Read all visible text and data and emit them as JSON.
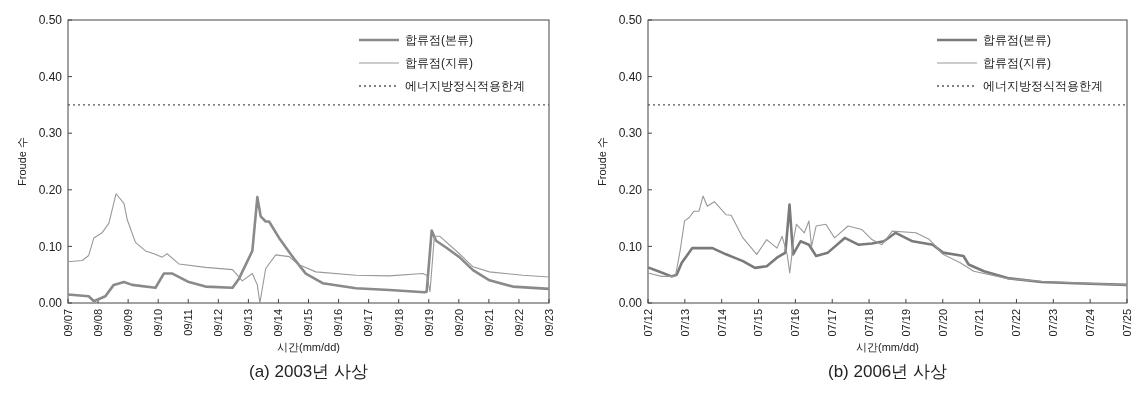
{
  "chart_data": [
    {
      "type": "line",
      "xlabel": "시간(mm/dd)",
      "ylabel": "Froude 수",
      "annotations": [
        "(a) 2003년 사상"
      ],
      "xlim": [
        "--09-07",
        "--09-23"
      ],
      "ylim": [
        0,
        0.5
      ],
      "yticks": [
        {
          "value": 0,
          "label": "0.00"
        },
        {
          "value": 0.1,
          "label": "0.10"
        },
        {
          "value": 0.2,
          "label": "0.20"
        },
        {
          "value": 0.3,
          "label": "0.30"
        },
        {
          "value": 0.4,
          "label": "0.40"
        },
        {
          "value": 0.5,
          "label": "0.50"
        }
      ],
      "xticks": [
        {
          "value": "--09-07",
          "label": "09/07"
        },
        {
          "value": "--09-08",
          "label": "09/08"
        },
        {
          "value": "--09-09",
          "label": "09/09"
        },
        {
          "value": "--09-10",
          "label": "09/10"
        },
        {
          "value": "--09-11",
          "label": "09/11"
        },
        {
          "value": "--09-12",
          "label": "09/12"
        },
        {
          "value": "--09-13",
          "label": "09/13"
        },
        {
          "value": "--09-14",
          "label": "09/14"
        },
        {
          "value": "--09-15",
          "label": "09/15"
        },
        {
          "value": "--09-16",
          "label": "09/16"
        },
        {
          "value": "--09-17",
          "label": "09/17"
        },
        {
          "value": "--09-18",
          "label": "09/18"
        },
        {
          "value": "--09-19",
          "label": "09/19"
        },
        {
          "value": "--09-20",
          "label": "09/20"
        },
        {
          "value": "--09-21",
          "label": "09/21"
        },
        {
          "value": "--09-22",
          "label": "09/22"
        },
        {
          "value": "--09-23",
          "label": "09/23"
        }
      ],
      "legend": "top right",
      "ref_lines": [
        {
          "axis": "y",
          "value": 0.35,
          "label": "에너지방정식적용한계",
          "color": "#555555",
          "line_style": "dotted"
        }
      ],
      "series": [
        {
          "name": "합류점(본류)",
          "color": "#8a8a8a",
          "x": [
            "--09-07T00:00",
            "--09-07T16:30",
            "--09-07T20:40",
            "--09-08T05:50",
            "--09-08T12:30",
            "--09-08T20:40",
            "--09-09T03:10",
            "--09-09T21:50",
            "--09-10T04:30",
            "--09-10T11:20",
            "--09-11T00:30",
            "--09-11T13:50",
            "--09-12T11:20",
            "--09-12T16:30",
            "--09-13T03:10",
            "--09-13T07:10",
            "--09-13T09:50",
            "--09-13T13:50",
            "--09-13T16:30",
            "--09-14T00:30",
            "--09-14T12:30",
            "--09-14T21:50",
            "--09-15T11:20",
            "--09-16T13:50",
            "--09-17T16:30",
            "--09-18T20:40",
            "--09-18T22:20",
            "--09-19T02:20",
            "--09-19T05:50",
            "--09-19T13:50",
            "--09-20T00:30",
            "--09-20T11:20",
            "--09-21T00:30",
            "--09-21T19:10",
            "--09-23T00:00"
          ],
          "values": [
            0.015,
            0.012,
            0.003,
            0.012,
            0.032,
            0.037,
            0.032,
            0.027,
            0.052,
            0.052,
            0.037,
            0.029,
            0.027,
            0.043,
            0.092,
            0.187,
            0.153,
            0.144,
            0.144,
            0.115,
            0.078,
            0.052,
            0.035,
            0.026,
            0.023,
            0.019,
            0.02,
            0.128,
            0.11,
            0.098,
            0.081,
            0.058,
            0.04,
            0.029,
            0.025
          ]
        },
        {
          "name": "합류점(지류)",
          "color": "#999999",
          "x": [
            "--09-07T00:00",
            "--09-07T11:20",
            "--09-07T16:30",
            "--09-07T20:40",
            "--09-08T03:10",
            "--09-08T08:40",
            "--09-08T14:20",
            "--09-08T20:40",
            "--09-08T23:20",
            "--09-09T05:50",
            "--09-09T13:50",
            "--09-09T20:40",
            "--09-10T03:10",
            "--09-10T07:10",
            "--09-10T16:30",
            "--09-11T13:50",
            "--09-12T11:20",
            "--09-12T19:10",
            "--09-13T03:10",
            "--09-13T07:10",
            "--09-13T09:10",
            "--09-13T13:50",
            "--09-13T21:50",
            "--09-14T08:40",
            "--09-14T15:10",
            "--09-15T05:50",
            "--09-16T13:50",
            "--09-17T16:30",
            "--09-18T19:10",
            "--09-18T22:30",
            "--09-19T01:00",
            "--09-19T04:30",
            "--09-19T08:40",
            "--09-20T00:30",
            "--09-20T11:20",
            "--09-21T00:30",
            "--09-22T03:10",
            "--09-23T00:00"
          ],
          "values": [
            0.073,
            0.075,
            0.084,
            0.115,
            0.124,
            0.141,
            0.193,
            0.176,
            0.147,
            0.107,
            0.092,
            0.087,
            0.081,
            0.087,
            0.069,
            0.063,
            0.059,
            0.039,
            0.052,
            0.032,
            0.0,
            0.061,
            0.085,
            0.082,
            0.069,
            0.055,
            0.049,
            0.048,
            0.052,
            0.049,
            0.02,
            0.118,
            0.118,
            0.087,
            0.064,
            0.055,
            0.049,
            0.046
          ]
        }
      ]
    },
    {
      "type": "line",
      "xlabel": "시간(mm/dd)",
      "ylabel": "Froude 수",
      "annotations": [
        "(b) 2006년 사상"
      ],
      "xlim": [
        "--07-12",
        "--07-25"
      ],
      "ylim": [
        0,
        0.5
      ],
      "yticks": [
        {
          "value": 0,
          "label": "0.00"
        },
        {
          "value": 0.1,
          "label": "0.10"
        },
        {
          "value": 0.2,
          "label": "0.20"
        },
        {
          "value": 0.3,
          "label": "0.30"
        },
        {
          "value": 0.4,
          "label": "0.40"
        },
        {
          "value": 0.5,
          "label": "0.50"
        }
      ],
      "xticks": [
        {
          "value": "--07-12",
          "label": "07/12"
        },
        {
          "value": "--07-13",
          "label": "07/13"
        },
        {
          "value": "--07-14",
          "label": "07/14"
        },
        {
          "value": "--07-15",
          "label": "07/15"
        },
        {
          "value": "--07-16",
          "label": "07/16"
        },
        {
          "value": "--07-17",
          "label": "07/17"
        },
        {
          "value": "--07-18",
          "label": "07/18"
        },
        {
          "value": "--07-19",
          "label": "07/19"
        },
        {
          "value": "--07-20",
          "label": "07/20"
        },
        {
          "value": "--07-21",
          "label": "07/21"
        },
        {
          "value": "--07-22",
          "label": "07/22"
        },
        {
          "value": "--07-23",
          "label": "07/23"
        },
        {
          "value": "--07-24",
          "label": "07/24"
        },
        {
          "value": "--07-25",
          "label": "07/25"
        }
      ],
      "legend": "top right",
      "ref_lines": [
        {
          "axis": "y",
          "value": 0.35,
          "label": "에너지방정식적용한계",
          "color": "#555555",
          "line_style": "dotted"
        }
      ],
      "series": [
        {
          "name": "합류점(본류)",
          "color": "#7a7a7a",
          "x": [
            "--07-12T00:00",
            "--07-12T06:40",
            "--07-12T15:20",
            "--07-12T18:40",
            "--07-12T22:00",
            "--07-13T04:50",
            "--07-13T11:20",
            "--07-13T18:00",
            "--07-14T02:50",
            "--07-14T13:50",
            "--07-14T21:40",
            "--07-15T05:20",
            "--07-15T12:00",
            "--07-15T17:30",
            "--07-15T20:10",
            "--07-15T22:30",
            "--07-16T03:20",
            "--07-16T08:50",
            "--07-16T13:30",
            "--07-16T21:10",
            "--07-17T08:10",
            "--07-17T17:00",
            "--07-18T01:50",
            "--07-18T09:40",
            "--07-18T17:20",
            "--07-19T04:20",
            "--07-19T17:30",
            "--07-20T00:10",
            "--07-20T13:30",
            "--07-20T16:50",
            "--07-21T02:50",
            "--07-21T18:10",
            "--07-22T16:20",
            "--07-23T14:20",
            "--07-25T00:00"
          ],
          "values": [
            0.063,
            0.056,
            0.047,
            0.05,
            0.071,
            0.097,
            0.097,
            0.097,
            0.086,
            0.074,
            0.062,
            0.065,
            0.08,
            0.089,
            0.174,
            0.086,
            0.109,
            0.103,
            0.083,
            0.089,
            0.115,
            0.103,
            0.105,
            0.109,
            0.124,
            0.109,
            0.103,
            0.089,
            0.083,
            0.068,
            0.056,
            0.044,
            0.037,
            0.035,
            0.032
          ]
        },
        {
          "name": "합류점(지류)",
          "color": "#999999",
          "x": [
            "--07-12T00:00",
            "--07-12T08:50",
            "--07-12T17:50",
            "--07-12T20:50",
            "--07-12T23:50",
            "--07-13T02:50",
            "--07-13T05:50",
            "--07-13T09:10",
            "--07-13T11:50",
            "--07-13T14:40",
            "--07-13T19:10",
            "--07-14T02:50",
            "--07-14T06:10",
            "--07-14T13:50",
            "--07-14T22:50",
            "--07-15T05:20",
            "--07-15T12:00",
            "--07-15T15:20",
            "--07-15T18:40",
            "--07-15T20:20",
            "--07-15T23:00",
            "--07-16T00:40",
            "--07-16T05:50",
            "--07-16T08:50",
            "--07-16T10:30",
            "--07-16T13:30",
            "--07-16T19:50",
            "--07-17T01:30",
            "--07-17T10:20",
            "--07-17T19:10",
            "--07-18T01:50",
            "--07-18T08:20",
            "--07-18T15:10",
            "--07-19T06:30",
            "--07-19T15:20",
            "--07-20T00:10",
            "--07-20T11:20",
            "--07-20T20:10",
            "--07-21T18:10",
            "--07-22T16:20",
            "--07-25T00:00"
          ],
          "values": [
            0.053,
            0.047,
            0.047,
            0.091,
            0.145,
            0.151,
            0.162,
            0.162,
            0.189,
            0.171,
            0.179,
            0.156,
            0.155,
            0.115,
            0.086,
            0.112,
            0.097,
            0.118,
            0.086,
            0.053,
            0.115,
            0.139,
            0.124,
            0.145,
            0.1,
            0.136,
            0.139,
            0.115,
            0.136,
            0.13,
            0.112,
            0.103,
            0.127,
            0.124,
            0.112,
            0.086,
            0.071,
            0.056,
            0.043,
            0.038,
            0.032
          ]
        }
      ]
    }
  ]
}
